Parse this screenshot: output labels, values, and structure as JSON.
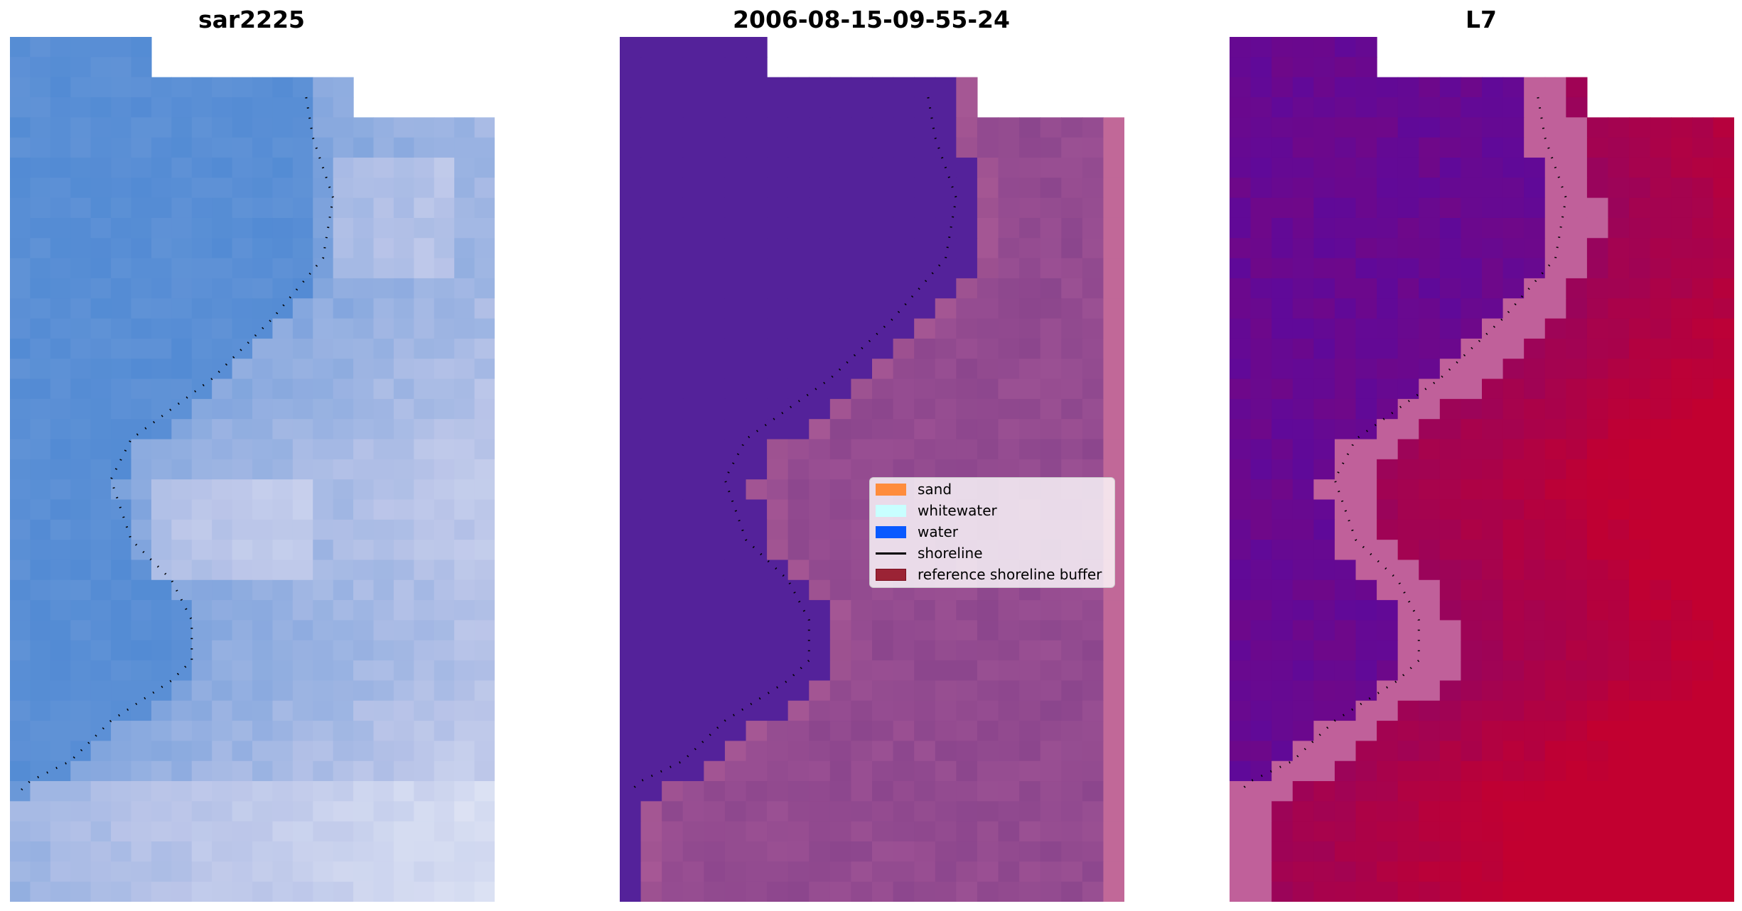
{
  "panels": [
    {
      "title": "sar2225"
    },
    {
      "title": "2006-08-15-09-55-24"
    },
    {
      "title": "L7"
    }
  ],
  "legend": {
    "items": [
      {
        "label": "sand",
        "color": "#ff8c3c",
        "kind": "patch"
      },
      {
        "label": "whitewater",
        "color": "#c8ffff",
        "kind": "patch"
      },
      {
        "label": "water",
        "color": "#0a5aff",
        "kind": "patch"
      },
      {
        "label": "shoreline",
        "color": "#000000",
        "kind": "line"
      },
      {
        "label": "reference shoreline buffer",
        "color": "#9b2335",
        "kind": "patch"
      }
    ]
  },
  "colors": {
    "rgb_water": "#4a86d2",
    "rgb_sand": "#b9c4e8",
    "classified_water": "#54229a",
    "classified_land": "#a55797",
    "classified_buffer": "#c16898",
    "mndwi_low": "#5a0a9f",
    "mndwi_high": "#c20030"
  }
}
